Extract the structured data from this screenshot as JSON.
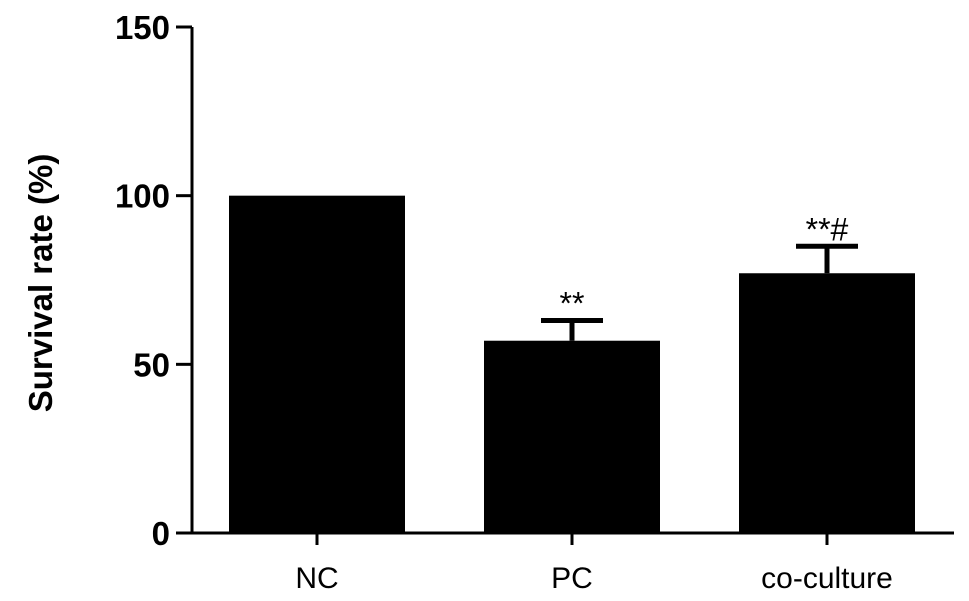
{
  "chart_data": {
    "type": "bar",
    "title": "",
    "xlabel": "",
    "ylabel": "Survival rate (%)",
    "ylim": [
      0,
      150
    ],
    "yticks": [
      0,
      50,
      100,
      150
    ],
    "grid": false,
    "legend": "none",
    "bar_color": "#000000",
    "categories": [
      "NC",
      "PC",
      "co-culture"
    ],
    "values": [
      100,
      57,
      77
    ],
    "errors": [
      0,
      6,
      8
    ],
    "annotations": [
      "",
      "**",
      "**#"
    ]
  }
}
